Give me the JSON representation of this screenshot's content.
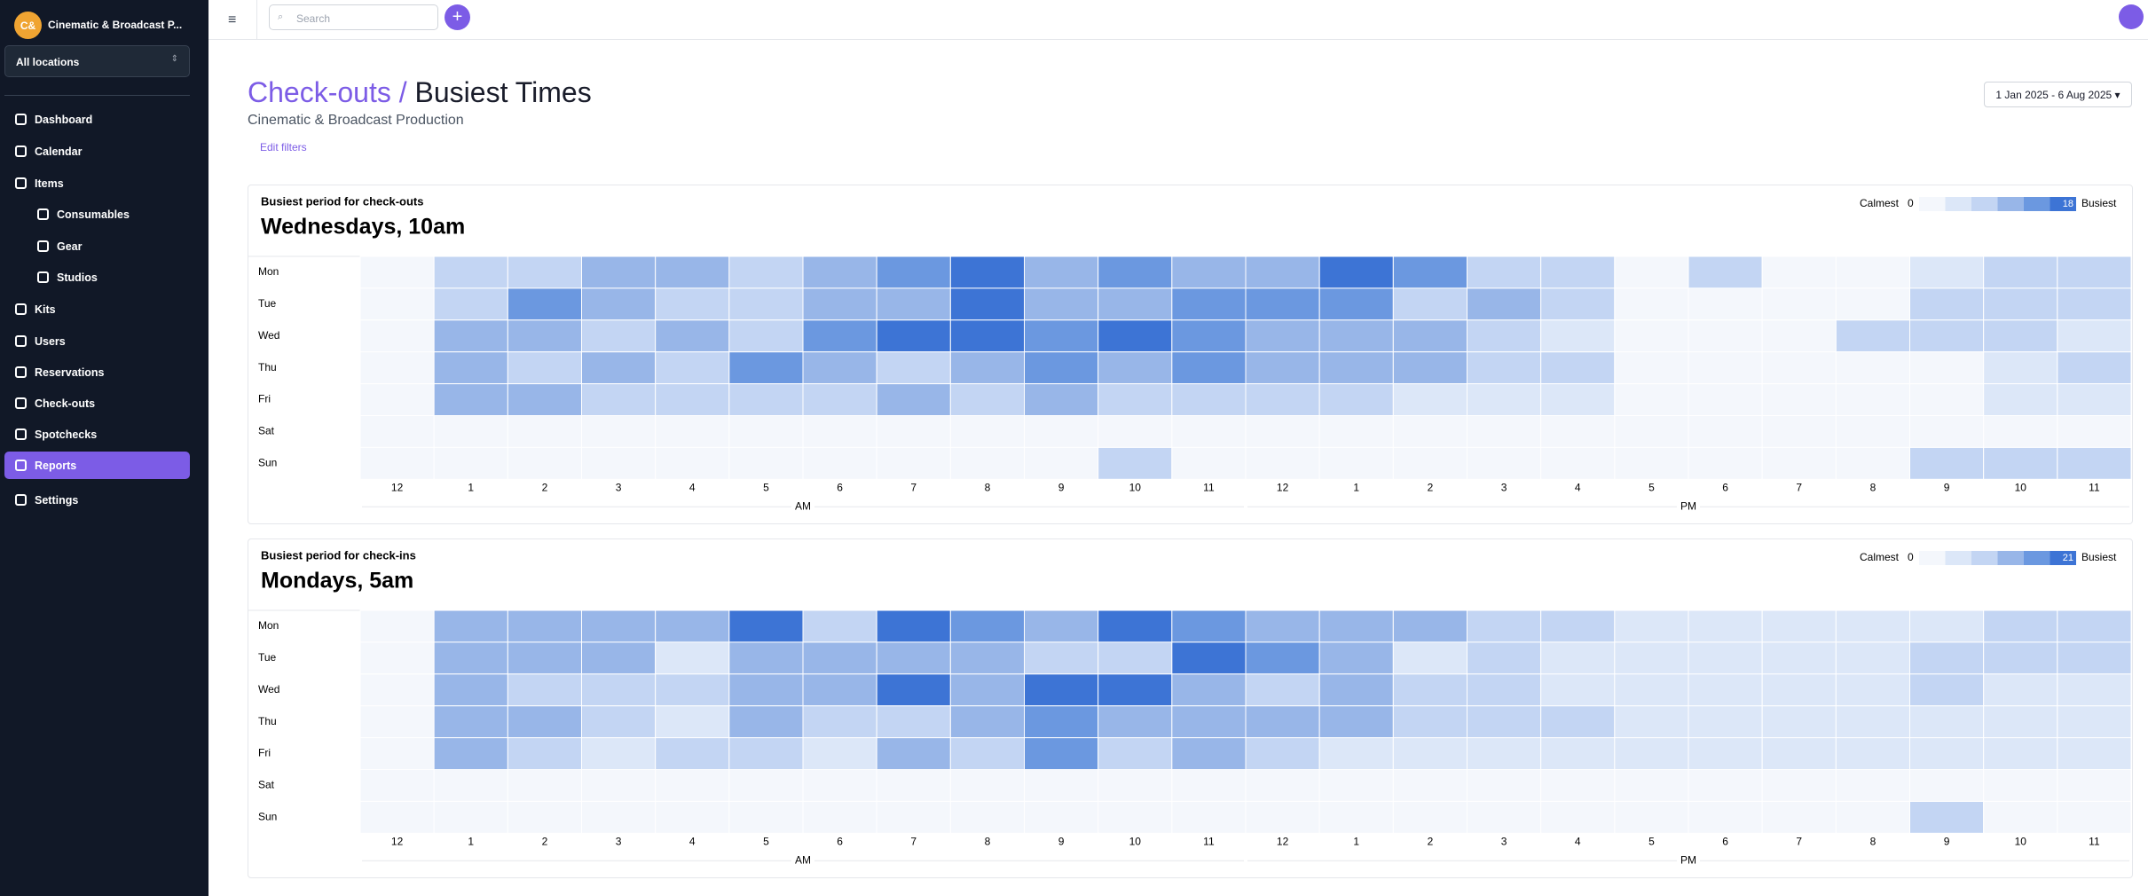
{
  "sidebar": {
    "org_initials": "C&",
    "org_name": "Cinematic & Broadcast P...",
    "location": "All locations",
    "nav": [
      {
        "label": "Dashboard"
      },
      {
        "label": "Calendar"
      },
      {
        "label": "Items"
      },
      {
        "label": "Consumables",
        "sub": true
      },
      {
        "label": "Gear",
        "sub": true
      },
      {
        "label": "Studios",
        "sub": true
      },
      {
        "label": "Kits"
      },
      {
        "label": "Users"
      },
      {
        "label": "Reservations"
      },
      {
        "label": "Check-outs"
      },
      {
        "label": "Spotchecks"
      },
      {
        "label": "Reports",
        "active": true
      },
      {
        "label": "Settings"
      }
    ]
  },
  "topbar": {
    "search_placeholder": "Search"
  },
  "header": {
    "breadcrumb": "Check-outs",
    "separator": "/",
    "title": "Busiest Times",
    "subtitle": "Cinematic & Broadcast Production",
    "edit_filters": "Edit filters",
    "date_range": "1 Jan 2025 - 6 Aug 2025"
  },
  "chart_data": [
    {
      "type": "heatmap",
      "title": "Busiest period for check-outs",
      "headline": "Wednesdays, 10am",
      "legend_low": "Calmest",
      "legend_high": "Busiest",
      "clim": [
        0,
        18
      ],
      "colors": [
        "#f4f7fc",
        "#dce7f8",
        "#c3d5f3",
        "#98b6e8",
        "#6b98e0",
        "#3d74d5"
      ],
      "days": [
        "Mon",
        "Tue",
        "Wed",
        "Thu",
        "Fri",
        "Sat",
        "Sun"
      ],
      "hours": [
        "12",
        "1",
        "2",
        "3",
        "4",
        "5",
        "6",
        "7",
        "8",
        "9",
        "10",
        "11",
        "12",
        "1",
        "2",
        "3",
        "4",
        "5",
        "6",
        "7",
        "8",
        "9",
        "10",
        "11"
      ],
      "periods": [
        "AM",
        "PM"
      ],
      "values": [
        [
          0,
          5,
          5,
          8,
          8,
          7,
          8,
          11,
          16,
          8,
          12,
          8,
          8,
          16,
          11,
          5,
          5,
          0,
          5,
          0,
          0,
          1,
          5,
          5
        ],
        [
          0,
          5,
          12,
          8,
          5,
          7,
          8,
          8,
          16,
          8,
          8,
          11,
          11,
          13,
          5,
          8,
          5,
          0,
          0,
          0,
          0,
          5,
          5,
          5
        ],
        [
          0,
          8,
          8,
          5,
          8,
          5,
          11,
          15,
          16,
          11,
          18,
          11,
          8,
          8,
          8,
          5,
          1,
          0,
          0,
          0,
          5,
          5,
          5,
          1
        ],
        [
          0,
          8,
          5,
          8,
          5,
          12,
          8,
          5,
          8,
          11,
          8,
          11,
          8,
          8,
          8,
          5,
          5,
          0,
          0,
          0,
          0,
          0,
          1,
          5
        ],
        [
          0,
          8,
          8,
          5,
          5,
          5,
          5,
          8,
          5,
          8,
          5,
          5,
          5,
          5,
          1,
          1,
          1,
          0,
          0,
          0,
          0,
          0,
          1,
          1
        ],
        [
          0,
          0,
          0,
          0,
          0,
          0,
          0,
          0,
          0,
          0,
          0,
          0,
          0,
          0,
          0,
          0,
          0,
          0,
          0,
          0,
          0,
          0,
          0,
          0
        ],
        [
          0,
          0,
          0,
          0,
          0,
          0,
          0,
          0,
          0,
          0,
          5,
          0,
          0,
          0,
          0,
          0,
          0,
          0,
          0,
          0,
          0,
          5,
          5,
          5
        ]
      ]
    },
    {
      "type": "heatmap",
      "title": "Busiest period for check-ins",
      "headline": "Mondays, 5am",
      "legend_low": "Calmest",
      "legend_high": "Busiest",
      "clim": [
        0,
        21
      ],
      "colors": [
        "#f4f7fc",
        "#dce7f8",
        "#c3d5f3",
        "#98b6e8",
        "#6b98e0",
        "#3d74d5"
      ],
      "days": [
        "Mon",
        "Tue",
        "Wed",
        "Thu",
        "Fri",
        "Sat",
        "Sun"
      ],
      "hours": [
        "12",
        "1",
        "2",
        "3",
        "4",
        "5",
        "6",
        "7",
        "8",
        "9",
        "10",
        "11",
        "12",
        "1",
        "2",
        "3",
        "4",
        "5",
        "6",
        "7",
        "8",
        "9",
        "10",
        "11"
      ],
      "periods": [
        "AM",
        "PM"
      ],
      "values": [
        [
          0,
          9,
          9,
          9,
          9,
          21,
          5,
          18,
          13,
          9,
          18,
          13,
          9,
          9,
          9,
          5,
          5,
          1,
          1,
          1,
          1,
          1,
          5,
          5
        ],
        [
          0,
          9,
          9,
          9,
          1,
          9,
          9,
          9,
          9,
          5,
          5,
          18,
          13,
          9,
          1,
          5,
          1,
          1,
          1,
          1,
          1,
          5,
          5,
          5
        ],
        [
          0,
          9,
          5,
          5,
          5,
          9,
          9,
          18,
          9,
          18,
          18,
          9,
          5,
          9,
          5,
          5,
          1,
          1,
          1,
          1,
          1,
          5,
          1,
          1
        ],
        [
          0,
          9,
          9,
          5,
          1,
          9,
          5,
          5,
          9,
          13,
          9,
          9,
          9,
          9,
          5,
          5,
          5,
          1,
          1,
          1,
          1,
          1,
          1,
          1
        ],
        [
          0,
          9,
          5,
          1,
          5,
          5,
          1,
          9,
          5,
          13,
          5,
          9,
          5,
          1,
          1,
          1,
          1,
          1,
          1,
          1,
          1,
          1,
          1,
          1
        ],
        [
          0,
          0,
          0,
          0,
          0,
          0,
          0,
          0,
          0,
          0,
          0,
          0,
          0,
          0,
          0,
          0,
          0,
          0,
          0,
          0,
          0,
          0,
          0,
          0
        ],
        [
          0,
          0,
          0,
          0,
          0,
          0,
          0,
          0,
          0,
          0,
          0,
          0,
          0,
          0,
          0,
          0,
          0,
          0,
          0,
          0,
          0,
          5,
          0,
          0
        ]
      ]
    }
  ]
}
